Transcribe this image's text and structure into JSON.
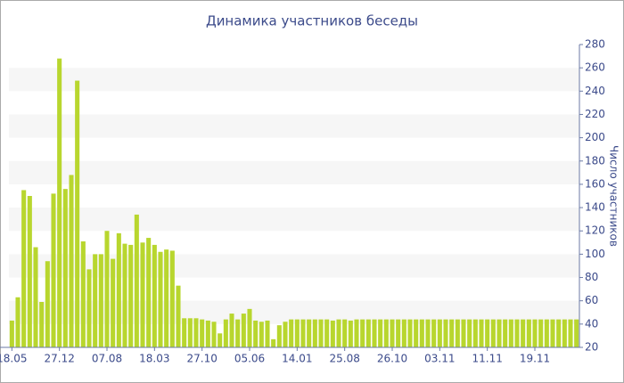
{
  "chart_data": {
    "type": "bar",
    "title": "Динамика участников беседы",
    "y_label": "Число участников",
    "categories": [
      "18.05",
      null,
      null,
      null,
      null,
      null,
      null,
      null,
      "27.12",
      null,
      null,
      null,
      null,
      null,
      null,
      null,
      "07.08",
      null,
      null,
      null,
      null,
      null,
      null,
      null,
      "18.03",
      null,
      null,
      null,
      null,
      null,
      null,
      null,
      "27.10",
      null,
      null,
      null,
      null,
      null,
      null,
      null,
      "05.06",
      null,
      null,
      null,
      null,
      null,
      null,
      null,
      "14.01",
      null,
      null,
      null,
      null,
      null,
      null,
      null,
      "25.08",
      null,
      null,
      null,
      null,
      null,
      null,
      null,
      "26.10",
      null,
      null,
      null,
      null,
      null,
      null,
      null,
      "03.11",
      null,
      null,
      null,
      null,
      null,
      null,
      null,
      "11.11",
      null,
      null,
      null,
      null,
      null,
      null,
      null,
      "19.11",
      null,
      null,
      null,
      null,
      null,
      null,
      null
    ],
    "values": [
      43,
      63,
      155,
      150,
      106,
      59,
      94,
      152,
      268,
      156,
      168,
      249,
      111,
      87,
      100,
      100,
      120,
      96,
      118,
      109,
      108,
      134,
      110,
      114,
      108,
      102,
      104,
      103,
      73,
      45,
      45,
      45,
      44,
      43,
      42,
      32,
      44,
      49,
      44,
      49,
      53,
      43,
      42,
      43,
      27,
      39,
      42,
      44,
      44,
      44,
      44,
      44,
      44,
      44,
      43,
      44,
      44,
      43,
      44,
      44,
      44,
      44,
      44,
      44,
      44,
      44,
      44,
      44,
      44,
      44,
      44,
      44,
      44,
      44,
      44,
      44,
      44,
      44,
      44,
      44,
      44,
      44,
      44,
      44,
      44,
      44,
      44,
      44,
      44,
      44,
      44,
      44,
      44,
      44,
      44,
      44
    ],
    "color": "#b8d62e",
    "ylim": [
      20,
      280
    ],
    "yticks": [
      20,
      40,
      60,
      80,
      100,
      120,
      140,
      160,
      180,
      200,
      220,
      240,
      260,
      280
    ],
    "grid": "bands"
  }
}
